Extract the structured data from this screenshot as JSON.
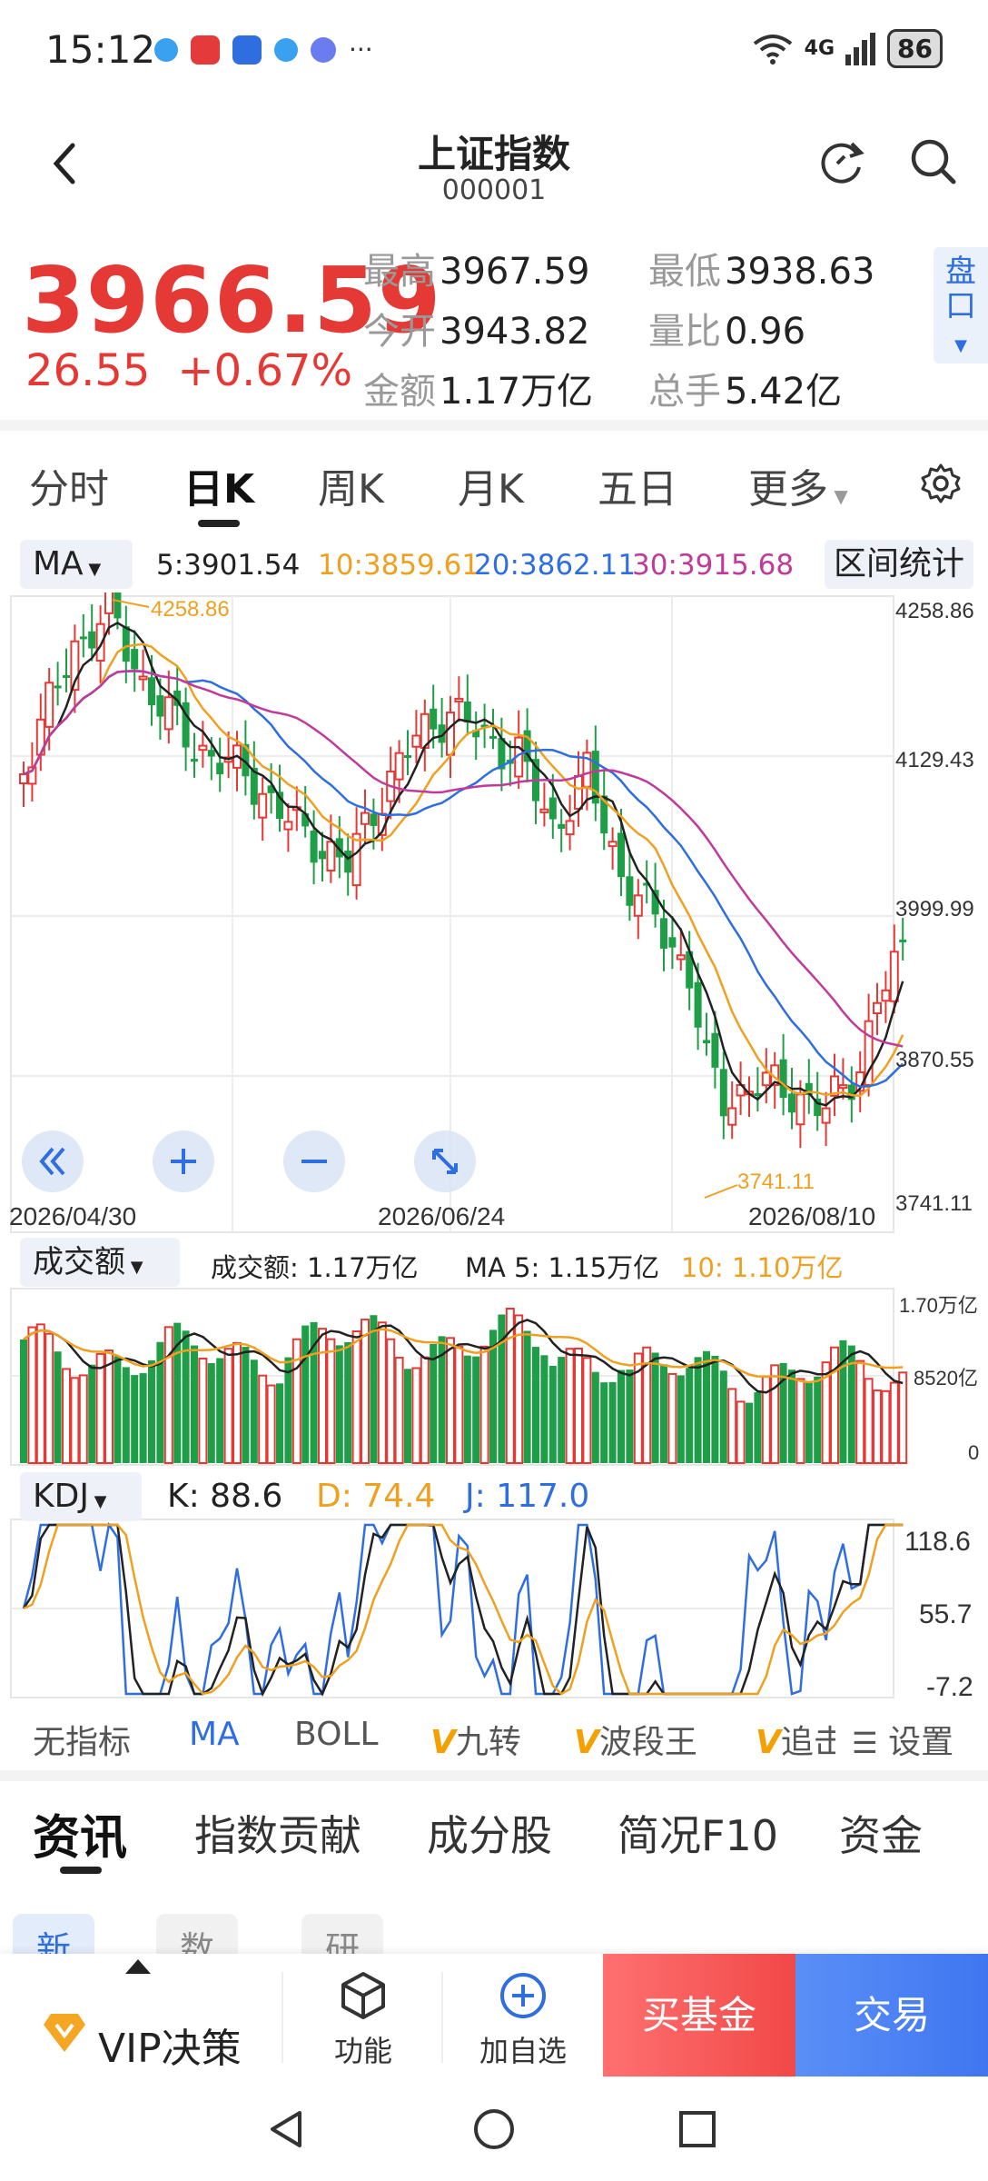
{
  "status_bar": {
    "time": "15:12",
    "more": "···",
    "network": "4G",
    "battery": "86"
  },
  "header": {
    "title": "上证指数",
    "code": "000001"
  },
  "quote": {
    "price": "3966.59",
    "change": "26.55",
    "change_pct": "+0.67%",
    "stats": [
      {
        "label": "最高",
        "value": "3967.59"
      },
      {
        "label": "最低",
        "value": "3938.63"
      },
      {
        "label": "今开",
        "value": "3943.82"
      },
      {
        "label": "量比",
        "value": "0.96"
      },
      {
        "label": "金额",
        "value": "1.17万亿"
      },
      {
        "label": "总手",
        "value": "5.42亿"
      }
    ],
    "pankou_label": "盘口"
  },
  "ktabs": [
    "分时",
    "日K",
    "周K",
    "月K",
    "五日",
    "更多"
  ],
  "ma_row": {
    "selector": "MA",
    "ma5": "5:3901.54",
    "ma10": "10:3859.61",
    "ma20": "20:3862.11",
    "ma30": "30:3915.68",
    "range_button": "区间统计"
  },
  "price_chart": {
    "y_labels": [
      "4258.86",
      "4129.43",
      "3999.99",
      "3870.55",
      "3741.11"
    ],
    "x_labels": [
      "2026/04/30",
      "2026/06/24",
      "2026/08/10"
    ],
    "high_annotation": "4258.86",
    "low_annotation": "3741.11"
  },
  "volume": {
    "selector": "成交额",
    "amount": "成交额: 1.17万亿",
    "ma5": "MA 5: 1.15万亿",
    "ma10": "10: 1.10万亿",
    "y_labels": [
      "1.70万亿",
      "8520亿",
      "0"
    ]
  },
  "kdj": {
    "selector": "KDJ",
    "k": "K: 88.6",
    "d": "D: 74.4",
    "j": "J: 117.0",
    "y_labels": [
      "118.6",
      "55.7",
      "-7.2"
    ]
  },
  "indicators": {
    "none": "无指标",
    "ma": "MA",
    "boll": "BOLL",
    "jiuzhuan": "九转",
    "boduan": "波段王",
    "zhui": "追击",
    "v_mark": "V",
    "settings": "设置"
  },
  "news_tabs": [
    "资讯",
    "指数贡献",
    "成分股",
    "简况F10",
    "资金"
  ],
  "sub_tabs": [
    "新闻",
    "数据",
    "研报"
  ],
  "bottom_bar": {
    "vip": "VIP决策",
    "function": "功能",
    "add_watch": "加自选",
    "buy_fund": "买基金",
    "trade": "交易"
  },
  "colors": {
    "up": "#e53935",
    "down": "#1e9e46",
    "ma5": "#222222",
    "ma10": "#f0a020",
    "ma20": "#2f6ee0",
    "ma30": "#c03a9a"
  }
}
